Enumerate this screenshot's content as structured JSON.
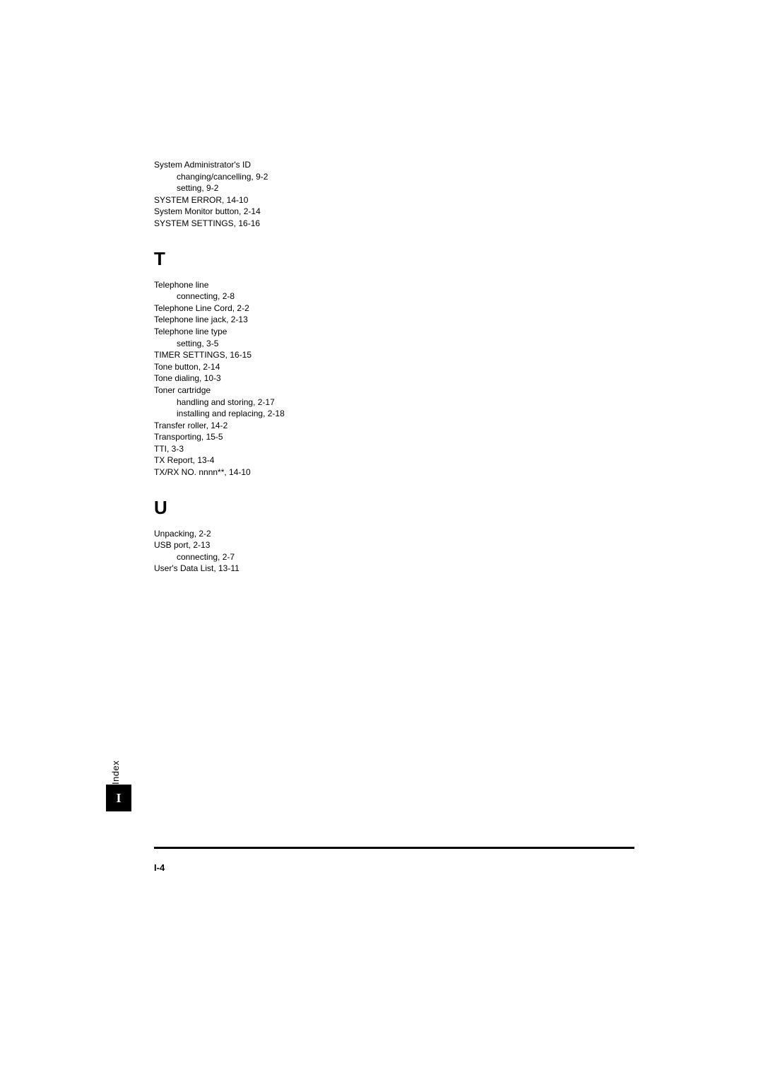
{
  "sections": {
    "pre": [
      {
        "text": "System Administrator's ID",
        "indent": 0
      },
      {
        "text": "changing/cancelling, 9-2",
        "indent": 1
      },
      {
        "text": "setting, 9-2",
        "indent": 1
      },
      {
        "text": "SYSTEM ERROR, 14-10",
        "indent": 0
      },
      {
        "text": "System Monitor button, 2-14",
        "indent": 0
      },
      {
        "text": "SYSTEM SETTINGS, 16-16",
        "indent": 0
      }
    ],
    "T": {
      "header": "T",
      "entries": [
        {
          "text": "Telephone line",
          "indent": 0
        },
        {
          "text": "connecting, 2-8",
          "indent": 1
        },
        {
          "text": "Telephone Line Cord, 2-2",
          "indent": 0
        },
        {
          "text": "Telephone line jack, 2-13",
          "indent": 0
        },
        {
          "text": "Telephone line type",
          "indent": 0
        },
        {
          "text": "setting, 3-5",
          "indent": 1
        },
        {
          "text": "TIMER SETTINGS, 16-15",
          "indent": 0
        },
        {
          "text": "Tone button, 2-14",
          "indent": 0
        },
        {
          "text": "Tone dialing, 10-3",
          "indent": 0
        },
        {
          "text": "Toner cartridge",
          "indent": 0
        },
        {
          "text": "handling and storing, 2-17",
          "indent": 1
        },
        {
          "text": "installing and replacing, 2-18",
          "indent": 1
        },
        {
          "text": "Transfer roller, 14-2",
          "indent": 0
        },
        {
          "text": "Transporting, 15-5",
          "indent": 0
        },
        {
          "text": "TTI, 3-3",
          "indent": 0
        },
        {
          "text": "TX Report, 13-4",
          "indent": 0
        },
        {
          "text": "TX/RX NO. nnnn**, 14-10",
          "indent": 0
        }
      ]
    },
    "U": {
      "header": "U",
      "entries": [
        {
          "text": "Unpacking, 2-2",
          "indent": 0
        },
        {
          "text": "USB port, 2-13",
          "indent": 0
        },
        {
          "text": "connecting, 2-7",
          "indent": 1
        },
        {
          "text": "User's Data List, 13-11",
          "indent": 0
        }
      ]
    }
  },
  "sideTab": {
    "label": "Index",
    "letter": "I"
  },
  "pageNumber": "I-4",
  "styling": {
    "pageWidth": 1080,
    "pageHeight": 1528,
    "contentLeft": 218,
    "contentTop": 226,
    "contentWidth": 680,
    "entryFontSize": 12,
    "headerFontSize": 26,
    "subIndent": 32,
    "tabBg": "#000000",
    "tabFg": "#ffffff",
    "textColor": "#000000",
    "bgColor": "#ffffff",
    "ruleTop": 1198,
    "pageNumTop": 1220
  }
}
